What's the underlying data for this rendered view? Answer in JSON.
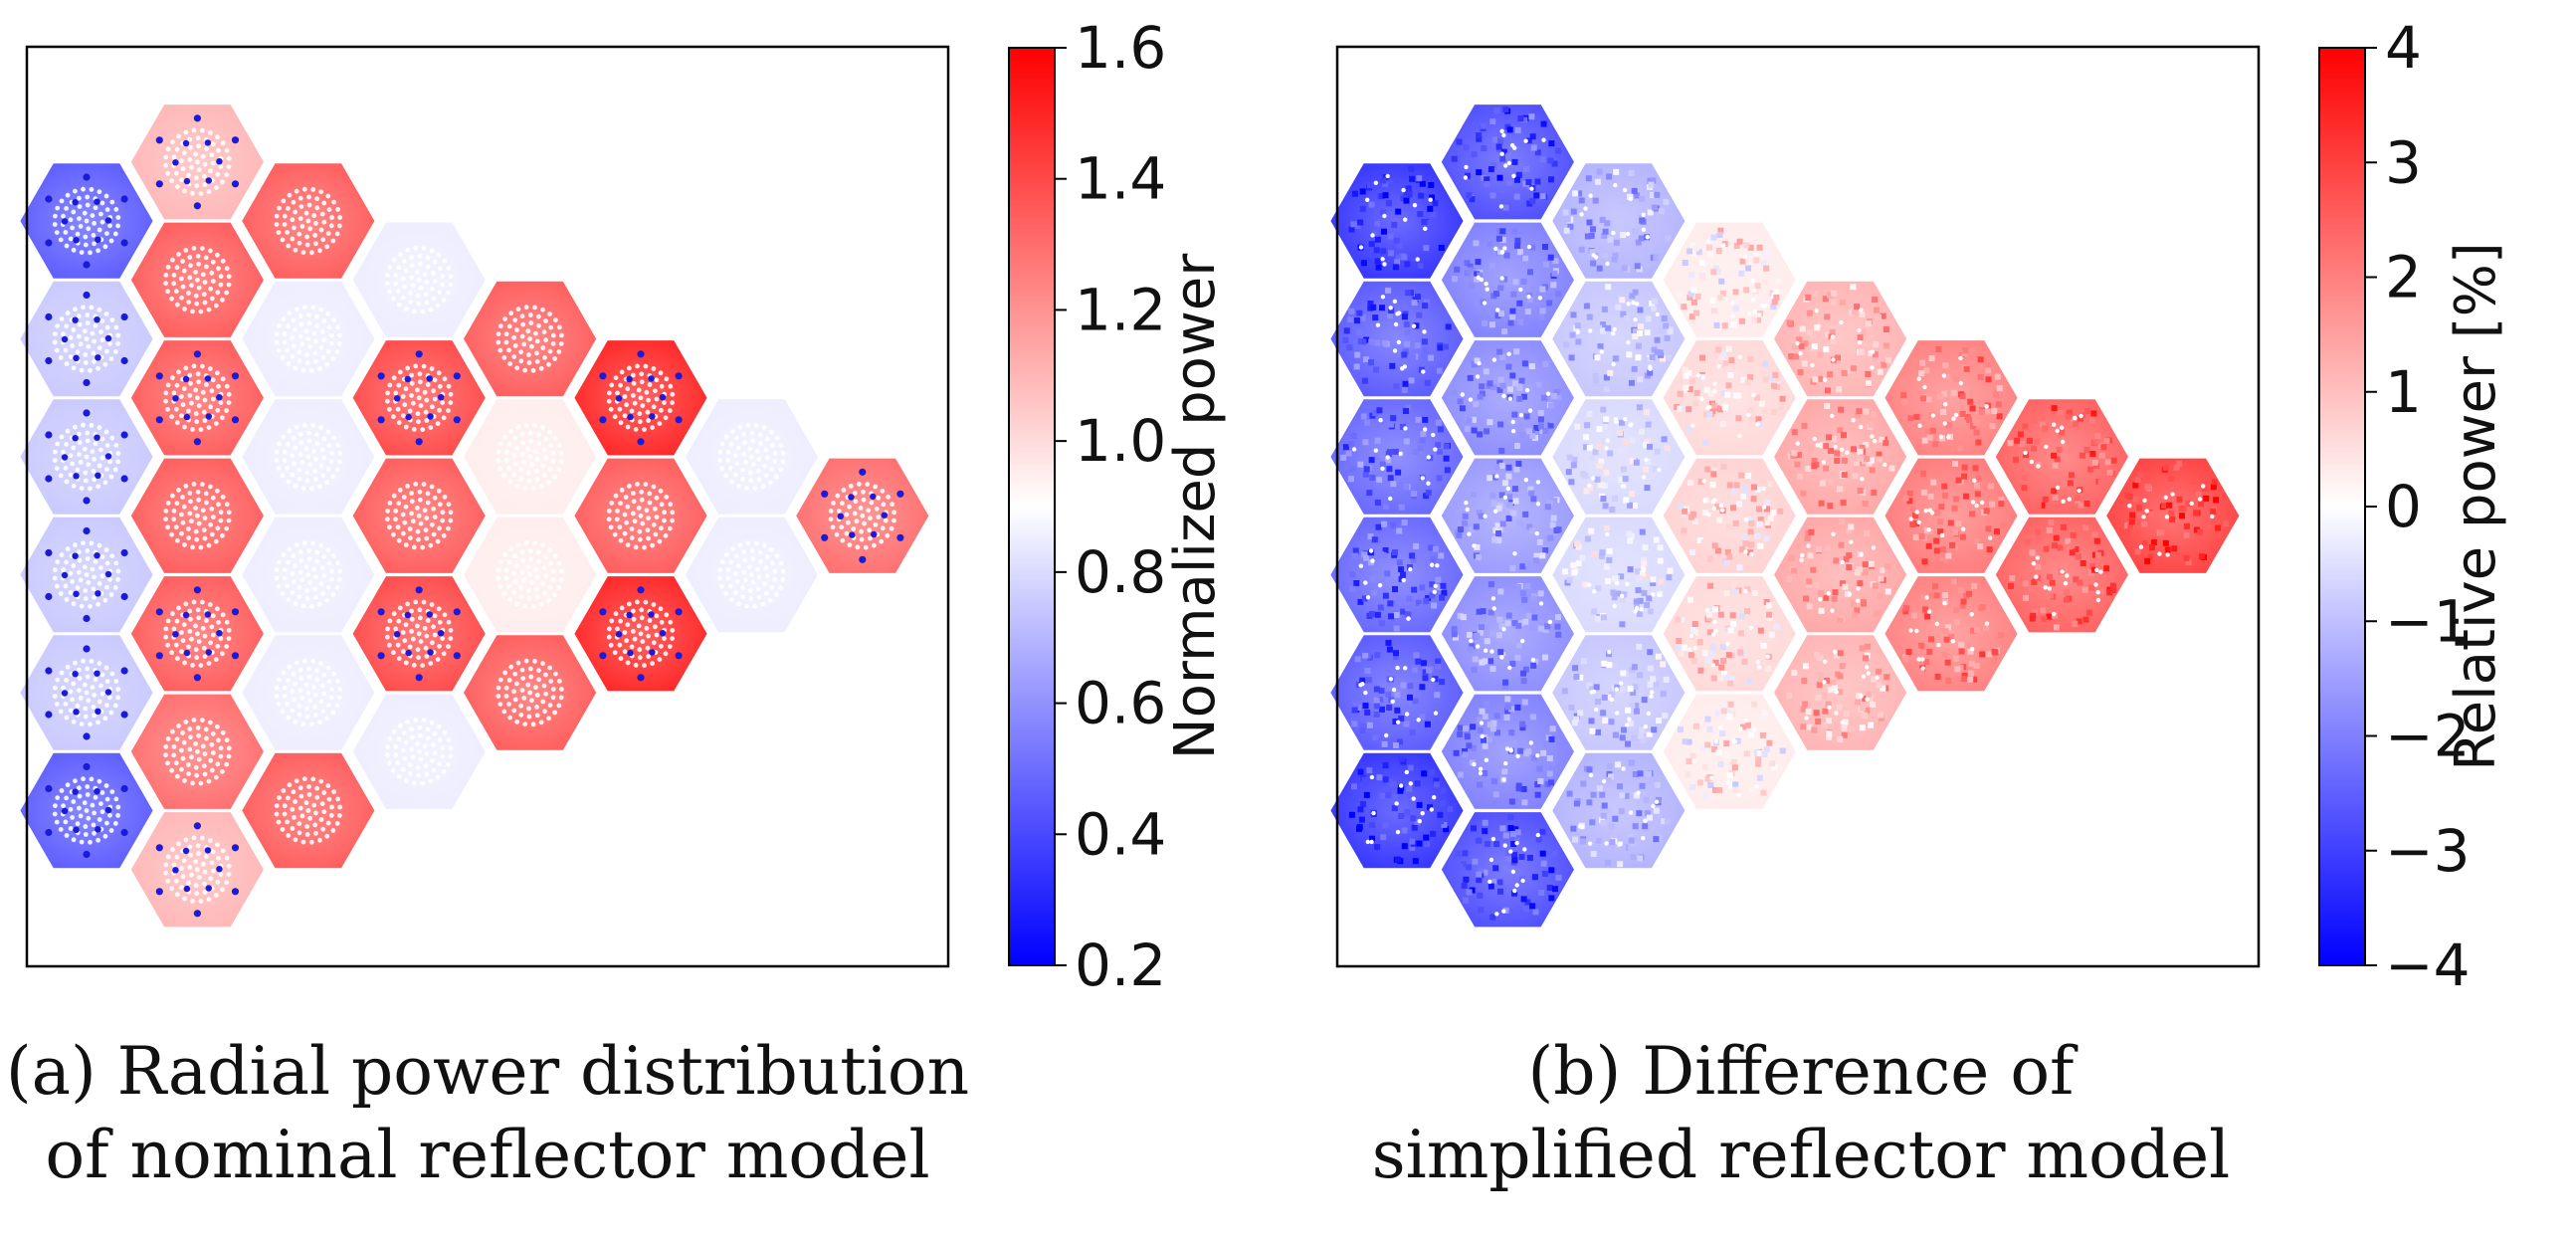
{
  "chart_data": [
    {
      "id": "a",
      "type": "heatmap",
      "title": "",
      "colorbar": {
        "label": "Normalized power",
        "range": [
          0.2,
          1.6
        ],
        "ticks": [
          0.2,
          0.4,
          0.6,
          0.8,
          1.0,
          1.2,
          1.4,
          1.6
        ],
        "tick_labels": [
          "0.2",
          "0.4",
          "0.6",
          "0.8",
          "1.0",
          "1.2",
          "1.4",
          "1.6"
        ],
        "colormap": [
          "#0000ff",
          "#ffffff",
          "#ff0000"
        ]
      },
      "caption": [
        "(a) Radial power distribution",
        "of nominal reflector model"
      ],
      "axes_ticks": "none",
      "assemblies": [
        {
          "col": 0,
          "row": 0,
          "value": 0.45,
          "rods": true
        },
        {
          "col": 0,
          "row": 1,
          "value": 0.75,
          "rods": true
        },
        {
          "col": 0,
          "row": 2,
          "value": 0.75,
          "rods": true
        },
        {
          "col": 0,
          "row": 3,
          "value": 0.75,
          "rods": true
        },
        {
          "col": 0,
          "row": 4,
          "value": 0.75,
          "rods": true
        },
        {
          "col": 0,
          "row": 5,
          "value": 0.45,
          "rods": true
        },
        {
          "col": 1,
          "row": -0.5,
          "value": 1.1,
          "rods": true
        },
        {
          "col": 1,
          "row": 0.5,
          "value": 1.35,
          "rods": false
        },
        {
          "col": 1,
          "row": 1.5,
          "value": 1.35,
          "rods": true
        },
        {
          "col": 1,
          "row": 2.5,
          "value": 1.35,
          "rods": false
        },
        {
          "col": 1,
          "row": 3.5,
          "value": 1.35,
          "rods": true
        },
        {
          "col": 1,
          "row": 4.5,
          "value": 1.3,
          "rods": false
        },
        {
          "col": 1,
          "row": 5.5,
          "value": 1.1,
          "rods": true
        },
        {
          "col": 2,
          "row": 0,
          "value": 1.35,
          "rods": false
        },
        {
          "col": 2,
          "row": 1,
          "value": 0.85,
          "rods": false
        },
        {
          "col": 2,
          "row": 2,
          "value": 0.85,
          "rods": false
        },
        {
          "col": 2,
          "row": 3,
          "value": 0.85,
          "rods": false
        },
        {
          "col": 2,
          "row": 4,
          "value": 0.85,
          "rods": false
        },
        {
          "col": 2,
          "row": 5,
          "value": 1.35,
          "rods": false
        },
        {
          "col": 3,
          "row": 0.5,
          "value": 0.85,
          "rods": false
        },
        {
          "col": 3,
          "row": 1.5,
          "value": 1.4,
          "rods": true
        },
        {
          "col": 3,
          "row": 2.5,
          "value": 1.35,
          "rods": false
        },
        {
          "col": 3,
          "row": 3.5,
          "value": 1.4,
          "rods": true
        },
        {
          "col": 3,
          "row": 4.5,
          "value": 0.85,
          "rods": false
        },
        {
          "col": 4,
          "row": 1,
          "value": 1.35,
          "rods": false
        },
        {
          "col": 4,
          "row": 2,
          "value": 0.95,
          "rods": false
        },
        {
          "col": 4,
          "row": 3,
          "value": 0.95,
          "rods": false
        },
        {
          "col": 4,
          "row": 4,
          "value": 1.35,
          "rods": false
        },
        {
          "col": 5,
          "row": 1.5,
          "value": 1.5,
          "rods": true
        },
        {
          "col": 5,
          "row": 2.5,
          "value": 1.35,
          "rods": false
        },
        {
          "col": 5,
          "row": 3.5,
          "value": 1.5,
          "rods": true
        },
        {
          "col": 6,
          "row": 2,
          "value": 0.85,
          "rods": false
        },
        {
          "col": 6,
          "row": 3,
          "value": 0.85,
          "rods": false
        },
        {
          "col": 7,
          "row": 2.5,
          "value": 1.3,
          "rods": true
        }
      ]
    },
    {
      "id": "b",
      "type": "heatmap",
      "title": "",
      "colorbar": {
        "label": "Relative power [%]",
        "range": [
          -4,
          4
        ],
        "ticks": [
          -4,
          -3,
          -2,
          -1,
          0,
          1,
          2,
          3,
          4
        ],
        "tick_labels": [
          "−4",
          "−3",
          "−2",
          "−1",
          "0",
          "1",
          "2",
          "3",
          "4"
        ],
        "colormap": [
          "#0000ff",
          "#ffffff",
          "#ff0000"
        ]
      },
      "caption": [
        "(b) Difference of",
        "simplified reflector model"
      ],
      "axes_ticks": "none",
      "assemblies": [
        {
          "col": 0,
          "row": 0,
          "value": -3.2
        },
        {
          "col": 0,
          "row": 1,
          "value": -2.6
        },
        {
          "col": 0,
          "row": 2,
          "value": -2.4
        },
        {
          "col": 0,
          "row": 3,
          "value": -2.4
        },
        {
          "col": 0,
          "row": 4,
          "value": -2.6
        },
        {
          "col": 0,
          "row": 5,
          "value": -3.2
        },
        {
          "col": 1,
          "row": -0.5,
          "value": -2.8
        },
        {
          "col": 1,
          "row": 0.5,
          "value": -2.0
        },
        {
          "col": 1,
          "row": 1.5,
          "value": -1.8
        },
        {
          "col": 1,
          "row": 2.5,
          "value": -1.6
        },
        {
          "col": 1,
          "row": 3.5,
          "value": -1.8
        },
        {
          "col": 1,
          "row": 4.5,
          "value": -2.0
        },
        {
          "col": 1,
          "row": 5.5,
          "value": -2.8
        },
        {
          "col": 2,
          "row": 0,
          "value": -1.2
        },
        {
          "col": 2,
          "row": 1,
          "value": -0.9
        },
        {
          "col": 2,
          "row": 2,
          "value": -0.6
        },
        {
          "col": 2,
          "row": 3,
          "value": -0.6
        },
        {
          "col": 2,
          "row": 4,
          "value": -0.9
        },
        {
          "col": 2,
          "row": 5,
          "value": -1.2
        },
        {
          "col": 3,
          "row": 0.5,
          "value": 0.3
        },
        {
          "col": 3,
          "row": 1.5,
          "value": 0.6
        },
        {
          "col": 3,
          "row": 2.5,
          "value": 0.7
        },
        {
          "col": 3,
          "row": 3.5,
          "value": 0.6
        },
        {
          "col": 3,
          "row": 4.5,
          "value": 0.3
        },
        {
          "col": 4,
          "row": 1,
          "value": 1.2
        },
        {
          "col": 4,
          "row": 2,
          "value": 1.4
        },
        {
          "col": 4,
          "row": 3,
          "value": 1.4
        },
        {
          "col": 4,
          "row": 4,
          "value": 1.2
        },
        {
          "col": 5,
          "row": 1.5,
          "value": 2.0
        },
        {
          "col": 5,
          "row": 2.5,
          "value": 2.1
        },
        {
          "col": 5,
          "row": 3.5,
          "value": 2.0
        },
        {
          "col": 6,
          "row": 2,
          "value": 2.5
        },
        {
          "col": 6,
          "row": 3,
          "value": 2.5
        },
        {
          "col": 7,
          "row": 2.5,
          "value": 3.0
        }
      ]
    }
  ]
}
